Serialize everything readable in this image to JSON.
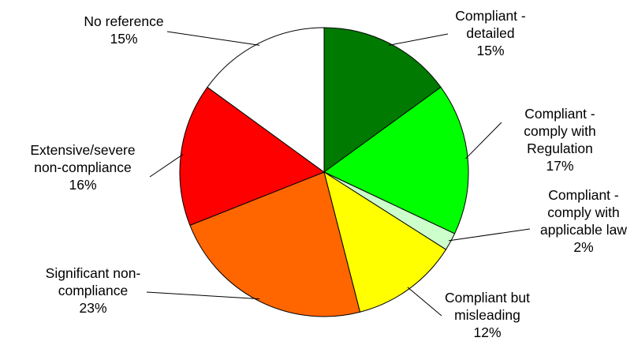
{
  "chart_data": {
    "type": "pie",
    "title": "",
    "start_angle_deg": 0,
    "direction": "clockwise",
    "slices": [
      {
        "lines": [
          "Compliant -",
          "detailed"
        ],
        "value": 15,
        "display": "15%",
        "color": "#007A00"
      },
      {
        "lines": [
          "Compliant -",
          "comply with",
          "Regulation"
        ],
        "value": 17,
        "display": "17%",
        "color": "#00FF00"
      },
      {
        "lines": [
          "Compliant -",
          "comply with",
          "applicable law"
        ],
        "value": 2,
        "display": "2%",
        "color": "#CCFFCC"
      },
      {
        "lines": [
          "Compliant but",
          "misleading"
        ],
        "value": 12,
        "display": "12%",
        "color": "#FFFF00"
      },
      {
        "lines": [
          "Significant non-",
          "compliance"
        ],
        "value": 23,
        "display": "23%",
        "color": "#FF6600"
      },
      {
        "lines": [
          "Extensive/severe",
          "non-compliance"
        ],
        "value": 16,
        "display": "16%",
        "color": "#FF0000"
      },
      {
        "lines": [
          "No reference"
        ],
        "value": 15,
        "display": "15%",
        "color": "#FFFFFF"
      }
    ]
  }
}
